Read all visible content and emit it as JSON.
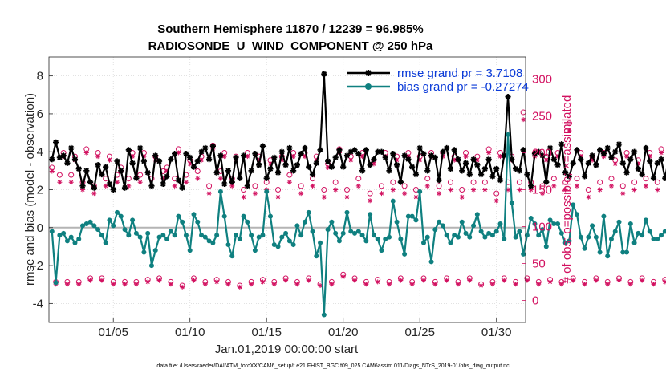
{
  "chart_data": {
    "type": "line",
    "title": "Southern Hemisphere 11870 / 12239 = 96.985%",
    "subtitle": "RADIOSONDE_U_WIND_COMPONENT @ 250 hPa",
    "xlabel": "Jan.01,2019 00:00:00 start",
    "ylabel": "rmse and bias (model - observation)",
    "y2label": "# of obs: o=possible; ×=assimilated",
    "xlim": [
      0.8,
      31.9
    ],
    "ylim": [
      -5,
      9
    ],
    "y2lim": [
      -30,
      330
    ],
    "x_ticks": [
      5,
      10,
      15,
      20,
      25,
      30
    ],
    "x_tick_labels": [
      "01/05",
      "01/10",
      "01/15",
      "01/20",
      "01/25",
      "01/30"
    ],
    "y_ticks": [
      -4,
      -2,
      0,
      2,
      4,
      6,
      8
    ],
    "y_tick_labels": [
      "-4",
      "-2",
      "0",
      "2",
      "4",
      "6",
      "8"
    ],
    "y2_ticks": [
      0,
      50,
      100,
      150,
      200,
      250,
      300
    ],
    "y2_tick_labels": [
      "0",
      "50",
      "100",
      "150",
      "200",
      "250",
      "300"
    ],
    "zero_line": 0,
    "grid": true,
    "legend_position": "top-right",
    "time_step_days": 0.25,
    "start_day": 1.0,
    "series": [
      {
        "name": "rmse grand pr = 3.7108",
        "color": "#000000",
        "marker": "asterisk",
        "axis": "left",
        "values": [
          3.6,
          4.5,
          3.7,
          3.8,
          3.4,
          4.2,
          3.6,
          3.1,
          2.2,
          3.0,
          2.4,
          2.1,
          3.3,
          2.8,
          3.2,
          2.3,
          2.0,
          3.5,
          3.0,
          2.1,
          4.1,
          3.4,
          2.6,
          4.2,
          3.5,
          2.9,
          2.2,
          3.8,
          3.5,
          2.3,
          2.7,
          3.6,
          3.9,
          2.5,
          2.1,
          3.9,
          3.7,
          3.2,
          3.5,
          4.0,
          4.2,
          3.6,
          4.3,
          2.9,
          3.8,
          2.3,
          3.0,
          2.4,
          3.7,
          2.6,
          3.8,
          2.2,
          3.0,
          3.9,
          3.3,
          4.3,
          2.6,
          3.1,
          3.7,
          2.9,
          4.0,
          3.3,
          4.2,
          3.0,
          3.3,
          3.9,
          4.2,
          3.2,
          2.8,
          3.4,
          4.1,
          8.1,
          3.5,
          3.2,
          3.7,
          4.1,
          3.2,
          3.8,
          4.0,
          4.1,
          3.9,
          3.0,
          4.1,
          3.3,
          3.6,
          4.0,
          4.0,
          3.7,
          3.0,
          3.9,
          3.3,
          2.4,
          3.8,
          3.6,
          3.2,
          2.8,
          4.2,
          3.9,
          3.0,
          3.8,
          3.7,
          2.5,
          4.0,
          4.2,
          3.1,
          4.1,
          3.6,
          3.0,
          3.4,
          2.8,
          3.6,
          3.3,
          2.8,
          3.1,
          3.6,
          2.7,
          3.1,
          2.5,
          3.8,
          6.9,
          3.6,
          3.1,
          3.0,
          4.1,
          2.8,
          2.2,
          3.9,
          4.0,
          3.8,
          2.4,
          4.2,
          3.6,
          3.3,
          4.4,
          2.9,
          2.7,
          3.4,
          4.1,
          3.6,
          2.7,
          3.4,
          3.8,
          3.3,
          4.1,
          3.9,
          4.2,
          3.7,
          4.0,
          4.4,
          3.4,
          2.9,
          3.6,
          4.0,
          3.1,
          2.8,
          4.2,
          3.5,
          2.6,
          3.4,
          3.6,
          2.6,
          3.7,
          2.8,
          3.5,
          3.0,
          2.6,
          3.1,
          2.9,
          3.8,
          2.6,
          3.1,
          2.9,
          3.3,
          3.8,
          3.2,
          2.6,
          3.5,
          2.0,
          2.6,
          3.2,
          3.3,
          3.0,
          3.1,
          2.9
        ]
      },
      {
        "name": "bias grand pr = -0.27274",
        "color": "#0f8080",
        "marker": "dot",
        "axis": "left",
        "values": [
          -0.2,
          -2.9,
          -0.4,
          -0.3,
          -0.7,
          -0.5,
          -0.8,
          -0.6,
          0.1,
          0.2,
          0.3,
          0.1,
          -0.1,
          -0.4,
          -0.8,
          0.4,
          0.1,
          0.8,
          0.6,
          -0.1,
          -0.4,
          0.4,
          -0.3,
          -0.5,
          -1.3,
          -0.3,
          -2.0,
          -1.2,
          -0.5,
          -0.4,
          -0.6,
          -0.2,
          -0.4,
          0.6,
          0.3,
          -0.4,
          -1.2,
          0.7,
          0.3,
          -0.4,
          -0.5,
          -0.7,
          -0.8,
          -0.4,
          1.9,
          0.6,
          -0.9,
          -1.5,
          -0.4,
          -0.6,
          0.6,
          0.3,
          -0.4,
          -1.2,
          -0.5,
          -0.4,
          1.9,
          0.6,
          -0.9,
          -1.0,
          -0.5,
          -0.3,
          -0.7,
          -0.9,
          0.1,
          -0.4,
          0.3,
          0.8,
          -0.2,
          -1.5,
          -0.8,
          -4.6,
          -0.1,
          0.3,
          -0.3,
          -0.7,
          -0.3,
          0.8,
          -0.2,
          -0.3,
          -0.2,
          -0.4,
          -0.7,
          0.7,
          -0.4,
          -0.6,
          -1.2,
          -0.6,
          -0.5,
          1.4,
          0.3,
          -0.6,
          -1.4,
          0.6,
          0.6,
          0.4,
          1.9,
          -0.8,
          -0.5,
          -1.8,
          -0.1,
          0.3,
          0.1,
          -0.4,
          -0.8,
          -0.4,
          -0.5,
          0.3,
          -0.3,
          -0.5,
          0.1,
          0.7,
          -0.2,
          -0.5,
          -0.3,
          -0.4,
          -0.2,
          0.2,
          -0.6,
          4.9,
          1.3,
          -0.5,
          -0.2,
          -1.4,
          -0.4,
          0.5,
          0.2,
          -0.4,
          -0.1,
          -1.0,
          0.4,
          0.2,
          0.2,
          -0.3,
          -0.8,
          -0.7,
          1.2,
          0.7,
          -0.5,
          -1.1,
          -0.5,
          0.1,
          -0.5,
          -1.3,
          0.6,
          -1.5,
          -0.6,
          -0.2,
          0.3,
          -1.3,
          -1.3,
          0.2,
          -0.8,
          -0.3,
          -0.4,
          0.4,
          -0.2,
          -0.6,
          -0.6,
          -0.4,
          -0.2,
          -0.3,
          0.3,
          -0.1,
          -0.4,
          -0.2,
          -0.6,
          -0.3,
          -1.2,
          -0.4,
          0.8,
          0.8,
          -0.7,
          0.3,
          -0.1,
          -0.6,
          -0.6,
          -0.7,
          -0.6,
          -0.7,
          -0.8,
          -0.8
        ]
      },
      {
        "name": "possible",
        "color": "#d21160",
        "marker": "circle",
        "axis": "right",
        "values": [
          180,
          25,
          170,
          200,
          25,
          170,
          195,
          25,
          160,
          205,
          30,
          155,
          200,
          30,
          165,
          195,
          25,
          170,
          180,
          25,
          165,
          200,
          25,
          170,
          200,
          28,
          165,
          195,
          30,
          175,
          180,
          25,
          165,
          205,
          20,
          170,
          190,
          30,
          175,
          195,
          25,
          155,
          210,
          28,
          175,
          200,
          25,
          165,
          195,
          20,
          150,
          200,
          25,
          155,
          195,
          28,
          160,
          190,
          25,
          150,
          195,
          30,
          170,
          200,
          25,
          155,
          200,
          30,
          165,
          195,
          22,
          150,
          185,
          25,
          160,
          205,
          35,
          150,
          195,
          30,
          165,
          200,
          25,
          145,
          190,
          28,
          155,
          200,
          25,
          160,
          195,
          30,
          155,
          200,
          25,
          150,
          195,
          30,
          165,
          200,
          25,
          155,
          200,
          30,
          160,
          195,
          25,
          150,
          200,
          30,
          160,
          195,
          22,
          160,
          205,
          25,
          145,
          200,
          30,
          160,
          195,
          25,
          160,
          255,
          30,
          160,
          200,
          25,
          155,
          195,
          28,
          165,
          200,
          25,
          160,
          240,
          30,
          165,
          200,
          25,
          150,
          195,
          30,
          160,
          200,
          25,
          165,
          190,
          30,
          155,
          200,
          25,
          160,
          190,
          30,
          165,
          200,
          25,
          160,
          205,
          28,
          150,
          195,
          25,
          165,
          205,
          30,
          170,
          200,
          28,
          165,
          195,
          25,
          170,
          225,
          28,
          165,
          205,
          20,
          165
        ]
      },
      {
        "name": "assimilated",
        "color": "#d21160",
        "marker": "asterisk",
        "axis": "right",
        "values": [
          175,
          22,
          160,
          195,
          22,
          160,
          190,
          22,
          150,
          200,
          27,
          145,
          195,
          27,
          155,
          190,
          22,
          160,
          175,
          22,
          155,
          195,
          22,
          160,
          195,
          25,
          155,
          190,
          27,
          165,
          175,
          22,
          155,
          200,
          18,
          160,
          185,
          27,
          165,
          190,
          22,
          145,
          205,
          25,
          165,
          195,
          22,
          155,
          190,
          18,
          140,
          195,
          22,
          145,
          190,
          25,
          150,
          185,
          22,
          140,
          190,
          27,
          160,
          195,
          22,
          145,
          195,
          27,
          155,
          190,
          20,
          140,
          180,
          22,
          150,
          200,
          32,
          140,
          190,
          27,
          155,
          195,
          22,
          135,
          185,
          25,
          145,
          195,
          22,
          150,
          190,
          27,
          145,
          195,
          22,
          140,
          190,
          27,
          155,
          195,
          22,
          145,
          195,
          27,
          150,
          190,
          22,
          140,
          195,
          27,
          150,
          190,
          20,
          150,
          200,
          22,
          135,
          195,
          27,
          150,
          190,
          22,
          150,
          245,
          27,
          150,
          195,
          22,
          145,
          190,
          25,
          155,
          195,
          22,
          150,
          230,
          27,
          155,
          195,
          22,
          140,
          190,
          27,
          150,
          195,
          22,
          155,
          185,
          27,
          145,
          195,
          22,
          150,
          185,
          27,
          155,
          195,
          22,
          150,
          200,
          25,
          140,
          190,
          22,
          155,
          200,
          27,
          160,
          195,
          25,
          155,
          190,
          22,
          160,
          215,
          25,
          155,
          200,
          8,
          155
        ]
      }
    ]
  },
  "footer_note": "data file: /Users/raeder/DAI/ATM_forcXX/CAM6_setup/f.e21.FHIST_BGC.f09_025.CAM6assim.011/Diags_NTrS_2019-01/obs_diag_output.nc"
}
